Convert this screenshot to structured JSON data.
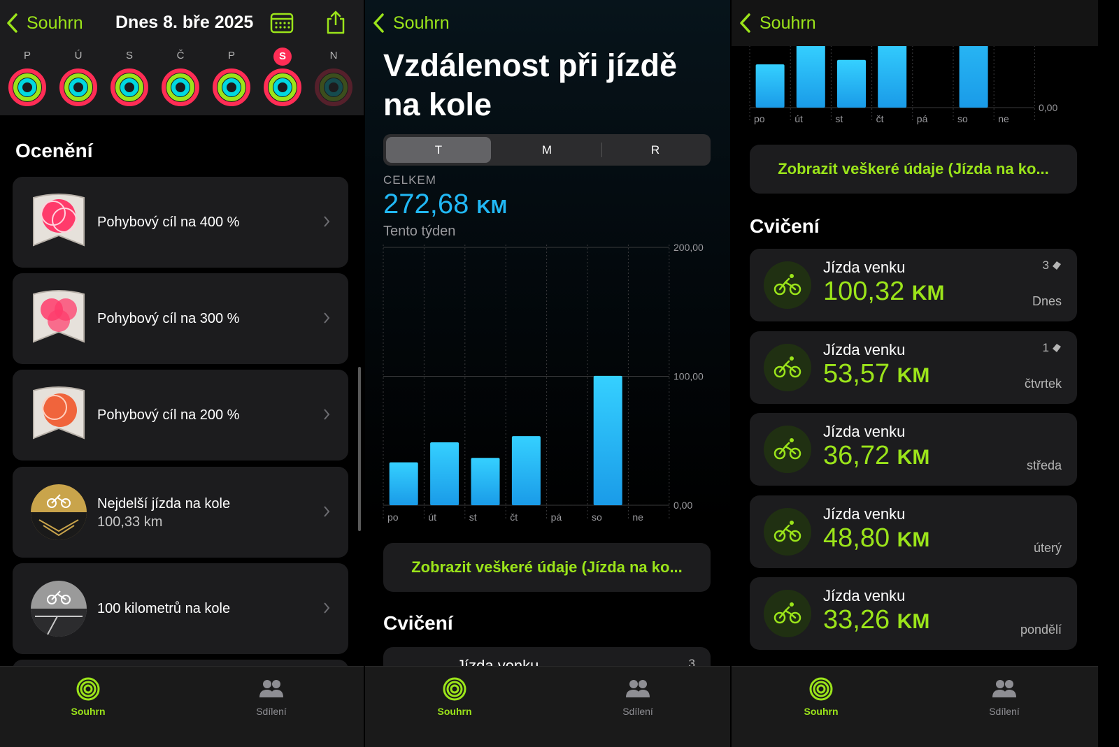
{
  "panel1": {
    "back_label": "Souhrn",
    "title": "Dnes 8. bře 2025",
    "days": [
      "P",
      "Ú",
      "S",
      "Č",
      "P",
      "S",
      "N"
    ],
    "selected_day_index": 5,
    "section_title": "Ocenění",
    "awards": [
      {
        "label": "Pohybový cíl na 400 %",
        "sub": ""
      },
      {
        "label": "Pohybový cíl na 300 %",
        "sub": ""
      },
      {
        "label": "Pohybový cíl na 200 %",
        "sub": ""
      },
      {
        "label": "Nejdelší jízda na kole",
        "sub": "100,33 km"
      },
      {
        "label": "100 kilometrů na kole",
        "sub": ""
      }
    ]
  },
  "panel2": {
    "back_label": "Souhrn",
    "title": "Vzdálenost při jízdě na kole",
    "segments": [
      "T",
      "M",
      "R"
    ],
    "total_label": "CELKEM",
    "total_value": "272,68",
    "total_unit": "KM",
    "period": "Tento týden",
    "show_all": "Zobrazit veškeré údaje (Jízda na ko...",
    "section_title": "Cvičení",
    "peek_name": "Jízda venku",
    "peek_count": "3"
  },
  "panel3": {
    "back_label": "Souhrn",
    "zero_label": "0,00",
    "show_all": "Zobrazit veškeré údaje (Jízda na ko...",
    "section_title": "Cvičení",
    "workouts": [
      {
        "name": "Jízda venku",
        "value": "100,32",
        "unit": "KM",
        "date": "Dnes",
        "count": "3"
      },
      {
        "name": "Jízda venku",
        "value": "53,57",
        "unit": "KM",
        "date": "čtvrtek",
        "count": "1"
      },
      {
        "name": "Jízda venku",
        "value": "36,72",
        "unit": "KM",
        "date": "středa",
        "count": ""
      },
      {
        "name": "Jízda venku",
        "value": "48,80",
        "unit": "KM",
        "date": "úterý",
        "count": ""
      },
      {
        "name": "Jízda venku",
        "value": "33,26",
        "unit": "KM",
        "date": "pondělí",
        "count": ""
      }
    ]
  },
  "tabbar": {
    "summary": "Souhrn",
    "sharing": "Sdílení"
  },
  "chart_data": {
    "type": "bar",
    "categories": [
      "po",
      "út",
      "st",
      "čt",
      "pá",
      "so",
      "ne"
    ],
    "values": [
      33.26,
      48.8,
      36.72,
      53.57,
      0,
      100.32,
      0
    ],
    "ylim": [
      0,
      200
    ],
    "yticks": [
      "0,00",
      "100,00",
      "200,00"
    ],
    "title": "",
    "xlabel": "",
    "ylabel": "",
    "color": "#21b8f5"
  },
  "colors": {
    "accent": "#9be41a",
    "chart": "#21b8f5",
    "move": "#ff2d55",
    "card": "#1c1c1e"
  }
}
